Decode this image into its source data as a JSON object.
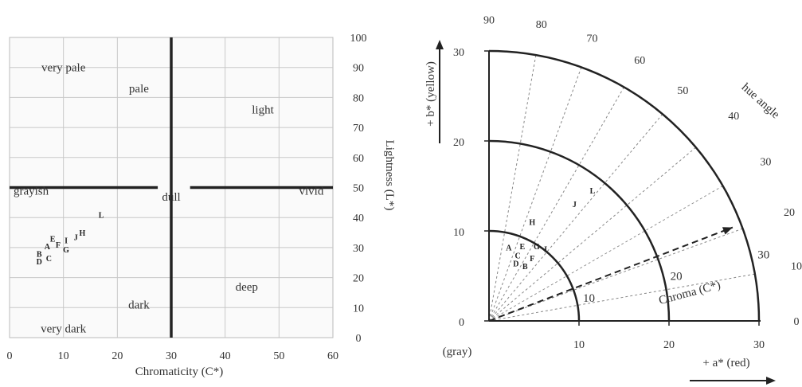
{
  "chart_data": [
    {
      "type": "scatter",
      "xlabel": "Chromaticity (C*)",
      "ylabel": "Lightness (L*)",
      "xlim": [
        0,
        60
      ],
      "ylim": [
        0,
        100
      ],
      "xticks": [
        "0",
        "10",
        "20",
        "30",
        "40",
        "50",
        "60"
      ],
      "yticks": [
        "0",
        "10",
        "20",
        "30",
        "40",
        "50",
        "60",
        "70",
        "80",
        "90",
        "100"
      ],
      "grid": true,
      "regions": [
        {
          "name": "very pale",
          "x": 10,
          "y": 90
        },
        {
          "name": "pale",
          "x": 24,
          "y": 83
        },
        {
          "name": "light",
          "x": 47,
          "y": 76
        },
        {
          "name": "grayish",
          "x": 4,
          "y": 49
        },
        {
          "name": "dull",
          "x": 30,
          "y": 47
        },
        {
          "name": "vivid",
          "x": 56,
          "y": 49
        },
        {
          "name": "deep",
          "x": 44,
          "y": 17
        },
        {
          "name": "dark",
          "x": 24,
          "y": 11
        },
        {
          "name": "very dark",
          "x": 10,
          "y": 3
        }
      ],
      "points": [
        {
          "label": "L",
          "x": 17,
          "y": 41
        },
        {
          "label": "H",
          "x": 13.5,
          "y": 35
        },
        {
          "label": "J",
          "x": 12.3,
          "y": 33.5
        },
        {
          "label": "E",
          "x": 8,
          "y": 33
        },
        {
          "label": "I",
          "x": 10.5,
          "y": 32.5
        },
        {
          "label": "A",
          "x": 7,
          "y": 30.5
        },
        {
          "label": "F",
          "x": 9,
          "y": 31
        },
        {
          "label": "G",
          "x": 10.5,
          "y": 29.5
        },
        {
          "label": "B",
          "x": 5.5,
          "y": 28
        },
        {
          "label": "C",
          "x": 7.3,
          "y": 26.5
        },
        {
          "label": "D",
          "x": 5.5,
          "y": 25.5
        }
      ]
    },
    {
      "type": "polar-scatter",
      "xlabel": "+ a* (red)",
      "ylabel": "+ b* (yellow)",
      "xlim": [
        0,
        30
      ],
      "ylim": [
        0,
        30
      ],
      "xticks": [
        "0",
        "10",
        "20",
        "30"
      ],
      "yticks": [
        "0",
        "10",
        "20",
        "30"
      ],
      "origin_label": "(gray)",
      "chroma_circles": [
        10,
        20,
        30
      ],
      "chroma_labels": [
        "10",
        "20",
        "30"
      ],
      "chroma_axis_label": "Chroma (C*)",
      "chroma_arrow_hue_deg": 21,
      "hue_angle_label": "hue angle",
      "hue_lines_deg": [
        10,
        20,
        30,
        40,
        50,
        60,
        70,
        80
      ],
      "hue_tick_labels": [
        {
          "deg": 90,
          "text": "90"
        },
        {
          "deg": 80,
          "text": "80"
        },
        {
          "deg": 70,
          "text": "70"
        },
        {
          "deg": 60,
          "text": "60"
        },
        {
          "deg": 50,
          "text": "50"
        },
        {
          "deg": 40,
          "text": "40"
        },
        {
          "deg": 30,
          "text": "30"
        },
        {
          "deg": 20,
          "text": "20"
        },
        {
          "deg": 10,
          "text": "10"
        },
        {
          "deg": 0,
          "text": "0"
        }
      ],
      "points": [
        {
          "label": "L",
          "x": 11.5,
          "y": 14.5
        },
        {
          "label": "J",
          "x": 9.5,
          "y": 13
        },
        {
          "label": "H",
          "x": 4.8,
          "y": 11
        },
        {
          "label": "A",
          "x": 2.2,
          "y": 8.2
        },
        {
          "label": "E",
          "x": 3.7,
          "y": 8.3
        },
        {
          "label": "G",
          "x": 5.3,
          "y": 8.3
        },
        {
          "label": "I",
          "x": 6.3,
          "y": 8.0
        },
        {
          "label": "C",
          "x": 3.2,
          "y": 7.3
        },
        {
          "label": "F",
          "x": 4.8,
          "y": 7.0
        },
        {
          "label": "D",
          "x": 3.0,
          "y": 6.4
        },
        {
          "label": "B",
          "x": 4.0,
          "y": 6.1
        }
      ]
    }
  ]
}
